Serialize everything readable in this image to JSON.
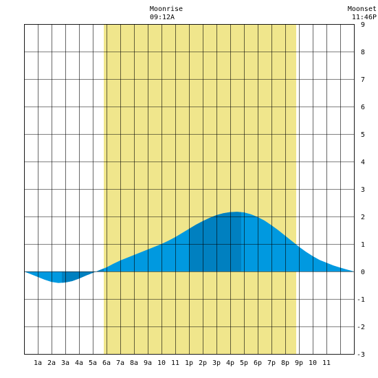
{
  "header": {
    "moonrise_label": "Moonrise",
    "moonrise_time": "09:12A",
    "moonset_label": "Moonset",
    "moonset_time": "11:46P"
  },
  "colors": {
    "daylight": "#f0e68c",
    "tide_light": "#0099e0",
    "tide_dark": "#0080c0",
    "grid": "#000000",
    "background": "#ffffff"
  },
  "chart_data": {
    "type": "area",
    "title": "",
    "xlabel": "",
    "ylabel": "",
    "xlim": [
      0,
      24
    ],
    "ylim": [
      -3,
      9
    ],
    "grid": true,
    "x_tick_labels": [
      "1a",
      "2a",
      "3a",
      "4a",
      "5a",
      "6a",
      "7a",
      "8a",
      "9a",
      "10",
      "11",
      "1p",
      "2p",
      "3p",
      "4p",
      "5p",
      "6p",
      "7p",
      "8p",
      "9p",
      "10",
      "11"
    ],
    "y_ticks": [
      -3,
      -2,
      -1,
      0,
      1,
      2,
      3,
      4,
      5,
      6,
      7,
      8,
      9
    ],
    "daylight_span": [
      5.8,
      19.8
    ],
    "moonrise_hour": 9.2,
    "moonset_hour": 23.77,
    "shade_bands": [
      [
        2.75,
        5.8
      ],
      [
        12.0,
        15.8
      ]
    ],
    "series": [
      {
        "x": [
          0,
          0.5,
          1,
          1.5,
          2,
          2.5,
          3,
          3.5,
          4,
          4.5,
          5,
          5.5,
          6,
          6.5,
          7,
          7.5,
          8,
          8.5,
          9,
          9.5,
          10,
          10.5,
          11,
          11.5,
          12,
          12.5,
          13,
          13.5,
          14,
          14.5,
          15,
          15.5,
          16,
          16.5,
          17,
          17.5,
          18,
          18.5,
          19,
          19.5,
          20,
          20.5,
          21,
          21.5,
          22,
          22.5,
          23,
          23.5,
          24
        ],
        "values": [
          0,
          -0.1,
          -0.2,
          -0.3,
          -0.38,
          -0.42,
          -0.4,
          -0.35,
          -0.26,
          -0.15,
          -0.05,
          0.05,
          0.15,
          0.28,
          0.4,
          0.5,
          0.6,
          0.7,
          0.8,
          0.9,
          1.0,
          1.12,
          1.25,
          1.4,
          1.55,
          1.7,
          1.83,
          1.95,
          2.05,
          2.12,
          2.16,
          2.17,
          2.15,
          2.08,
          1.98,
          1.85,
          1.68,
          1.5,
          1.3,
          1.1,
          0.9,
          0.72,
          0.56,
          0.42,
          0.32,
          0.22,
          0.14,
          0.07,
          0.0
        ]
      }
    ]
  }
}
